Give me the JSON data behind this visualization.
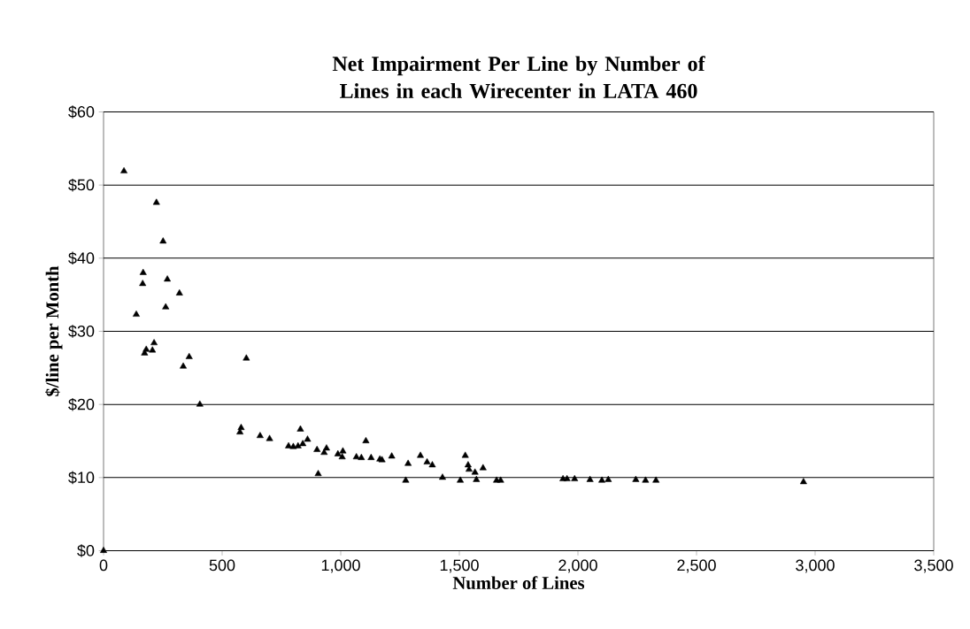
{
  "chart_data": {
    "type": "scatter",
    "title": "Net Impairment Per Line by Number of Lines in each Wirecenter in LATA 460",
    "xlabel": "Number of Lines",
    "ylabel": "$/line per Month",
    "x": [
      0,
      86,
      223,
      251,
      167,
      165,
      269,
      320,
      262,
      138,
      213,
      180,
      173,
      206,
      361,
      336,
      602,
      406,
      575,
      580,
      660,
      700,
      780,
      800,
      820,
      830,
      840,
      860,
      900,
      905,
      930,
      940,
      988,
      1009,
      1006,
      1106,
      1066,
      1087,
      1128,
      1165,
      1174,
      1215,
      1284,
      1274,
      1336,
      1364,
      1386,
      1429,
      1504,
      1525,
      1537,
      1541,
      1566,
      1572,
      1600,
      1657,
      1674,
      1937,
      1954,
      1986,
      2051,
      2101,
      2128,
      2244,
      2285,
      2329,
      2951
    ],
    "values": [
      0,
      51.9,
      47.6,
      42.3,
      38.0,
      36.5,
      37.1,
      35.2,
      33.3,
      32.3,
      28.4,
      27.5,
      27.0,
      27.4,
      26.5,
      25.2,
      26.3,
      20.0,
      16.2,
      16.8,
      15.7,
      15.3,
      14.3,
      14.2,
      14.3,
      16.6,
      14.6,
      15.2,
      13.8,
      10.5,
      13.4,
      14.0,
      13.2,
      13.6,
      12.8,
      15.0,
      12.8,
      12.7,
      12.7,
      12.5,
      12.4,
      12.9,
      11.9,
      9.6,
      13.0,
      12.1,
      11.7,
      10.0,
      9.6,
      13.0,
      11.7,
      11.1,
      10.7,
      9.7,
      11.3,
      9.6,
      9.6,
      9.8,
      9.8,
      9.8,
      9.7,
      9.6,
      9.7,
      9.7,
      9.6,
      9.6,
      9.4
    ],
    "color": "#000000",
    "marker": "triangle",
    "grid": "y",
    "xlim": [
      0,
      3500
    ],
    "xticks": [
      0,
      500,
      {
        "value": 1000,
        "label": "1,000"
      },
      {
        "value": 1500,
        "label": "1,500"
      },
      {
        "value": 2000,
        "label": "2,000"
      },
      {
        "value": 2500,
        "label": "2,500"
      },
      {
        "value": 3000,
        "label": "3,000"
      },
      {
        "value": 3500,
        "label": "3,500"
      }
    ],
    "ylim": [
      0,
      60
    ],
    "yticks": [
      {
        "value": 0,
        "label": "$0"
      },
      {
        "value": 10,
        "label": "$10"
      },
      {
        "value": 20,
        "label": "$20"
      },
      {
        "value": 30,
        "label": "$30"
      },
      {
        "value": 40,
        "label": "$40"
      },
      {
        "value": 50,
        "label": "$50"
      },
      {
        "value": 60,
        "label": "$60"
      }
    ]
  }
}
